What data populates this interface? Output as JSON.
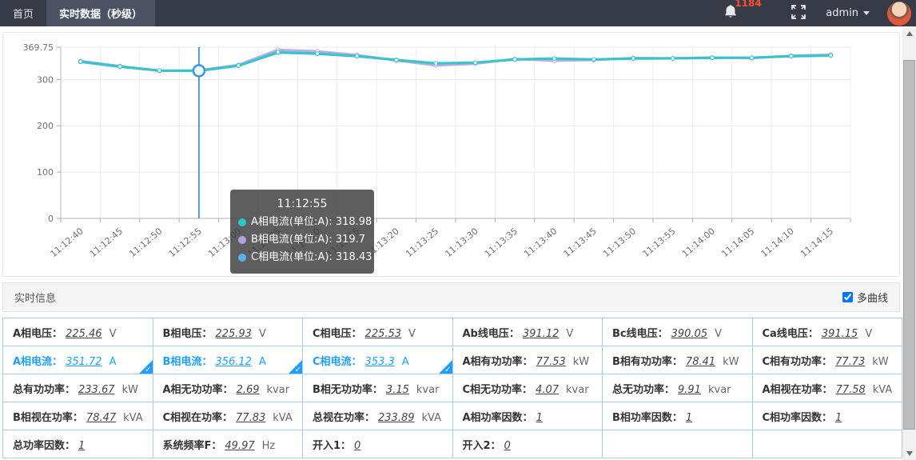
{
  "nav": {
    "tabs": [
      {
        "label": "首页",
        "active": false
      },
      {
        "label": "实时数据（秒级）",
        "active": true
      }
    ],
    "notification_count": "1184",
    "user": "admin"
  },
  "chart_data": {
    "type": "line",
    "x": [
      "11:12:40",
      "11:12:45",
      "11:12:50",
      "11:12:55",
      "11:13:00",
      "11:13:05",
      "11:13:10",
      "11:13:15",
      "11:13:20",
      "11:13:25",
      "11:13:30",
      "11:13:35",
      "11:13:40",
      "11:13:45",
      "11:13:50",
      "11:13:55",
      "11:14:00",
      "11:14:05",
      "11:14:10",
      "11:14:15"
    ],
    "series": [
      {
        "name": "A相电流(单位:A)",
        "color": "#2ec7c9",
        "values": [
          338.5,
          328.0,
          319.5,
          318.98,
          330.0,
          359.0,
          356.0,
          350.5,
          342.0,
          335.0,
          336.5,
          343.5,
          345.5,
          343.5,
          345.5,
          345.5,
          347.0,
          347.0,
          350.5,
          352.0
        ]
      },
      {
        "name": "B相电流(单位:A)",
        "color": "#b6a2de",
        "values": [
          340.0,
          329.0,
          318.5,
          319.7,
          331.5,
          364.0,
          361.0,
          353.0,
          341.0,
          330.5,
          334.0,
          344.5,
          340.5,
          342.0,
          346.5,
          346.0,
          347.5,
          346.0,
          351.5,
          353.5
        ]
      },
      {
        "name": "C相电流(单位:A)",
        "color": "#5ab1ef",
        "values": [
          338.0,
          327.5,
          319.0,
          318.43,
          329.5,
          358.0,
          355.5,
          350.0,
          342.5,
          334.5,
          336.0,
          343.0,
          345.0,
          343.0,
          345.0,
          345.5,
          346.5,
          347.0,
          350.0,
          351.5
        ]
      }
    ],
    "ylim": [
      0,
      369.75
    ],
    "yticks": [
      0,
      100,
      200,
      300,
      369.75
    ],
    "grid": true,
    "legend_position": "none",
    "highlight": {
      "time": "11:12:55",
      "index": 3
    }
  },
  "tooltip": {
    "title": "11:12:55",
    "items": [
      {
        "label": "A相电流(单位:A)",
        "value": "318.98",
        "color": "#2ec7c9"
      },
      {
        "label": "B相电流(单位:A)",
        "value": "319.7",
        "color": "#b6a2de"
      },
      {
        "label": "C相电流(单位:A)",
        "value": "318.43",
        "color": "#5ab1ef"
      }
    ]
  },
  "info": {
    "title": "实时信息",
    "multi_curve_label": "多曲线",
    "multi_curve_checked": true
  },
  "table": {
    "rows": [
      [
        {
          "label": "A相电压：",
          "value": "225.46",
          "unit": "V",
          "selected": false
        },
        {
          "label": "B相电压：",
          "value": "225.93",
          "unit": "V",
          "selected": false
        },
        {
          "label": "C相电压：",
          "value": "225.53",
          "unit": "V",
          "selected": false
        },
        {
          "label": "Ab线电压：",
          "value": "391.12",
          "unit": "V",
          "selected": false
        },
        {
          "label": "Bc线电压：",
          "value": "390.05",
          "unit": "V",
          "selected": false
        },
        {
          "label": "Ca线电压：",
          "value": "391.15",
          "unit": "V",
          "selected": false
        }
      ],
      [
        {
          "label": "A相电流：",
          "value": "351.72",
          "unit": "A",
          "selected": true
        },
        {
          "label": "B相电流：",
          "value": "356.12",
          "unit": "A",
          "selected": true
        },
        {
          "label": "C相电流：",
          "value": "353.3",
          "unit": "A",
          "selected": true
        },
        {
          "label": "A相有功功率：",
          "value": "77.53",
          "unit": "kW",
          "selected": false
        },
        {
          "label": "B相有功功率：",
          "value": "78.41",
          "unit": "kW",
          "selected": false
        },
        {
          "label": "C相有功功率：",
          "value": "77.73",
          "unit": "kW",
          "selected": false
        }
      ],
      [
        {
          "label": "总有功功率：",
          "value": "233.67",
          "unit": "kW",
          "selected": false
        },
        {
          "label": "A相无功功率：",
          "value": "2.69",
          "unit": "kvar",
          "selected": false
        },
        {
          "label": "B相无功功率：",
          "value": "3.15",
          "unit": "kvar",
          "selected": false
        },
        {
          "label": "C相无功功率：",
          "value": "4.07",
          "unit": "kvar",
          "selected": false
        },
        {
          "label": "总无功功率：",
          "value": "9.91",
          "unit": "kvar",
          "selected": false
        },
        {
          "label": "A相视在功率：",
          "value": "77.58",
          "unit": "kVA",
          "selected": false
        }
      ],
      [
        {
          "label": "B相视在功率：",
          "value": "78.47",
          "unit": "kVA",
          "selected": false
        },
        {
          "label": "C相视在功率：",
          "value": "77.83",
          "unit": "kVA",
          "selected": false
        },
        {
          "label": "总视在功率：",
          "value": "233.89",
          "unit": "kVA",
          "selected": false
        },
        {
          "label": "A相功率因数：",
          "value": "1",
          "unit": "",
          "selected": false
        },
        {
          "label": "B相功率因数：",
          "value": "1",
          "unit": "",
          "selected": false
        },
        {
          "label": "C相功率因数：",
          "value": "1",
          "unit": "",
          "selected": false
        }
      ],
      [
        {
          "label": "总功率因数：",
          "value": "1",
          "unit": "",
          "selected": false
        },
        {
          "label": "系统频率F：",
          "value": "49.97",
          "unit": "Hz",
          "selected": false
        },
        {
          "label": "开入1：",
          "value": "0",
          "unit": "",
          "selected": false
        },
        {
          "label": "开入2：",
          "value": "0",
          "unit": "",
          "selected": false
        },
        {
          "label": "",
          "value": "",
          "unit": "",
          "selected": false
        },
        {
          "label": "",
          "value": "",
          "unit": "",
          "selected": false
        }
      ]
    ]
  }
}
